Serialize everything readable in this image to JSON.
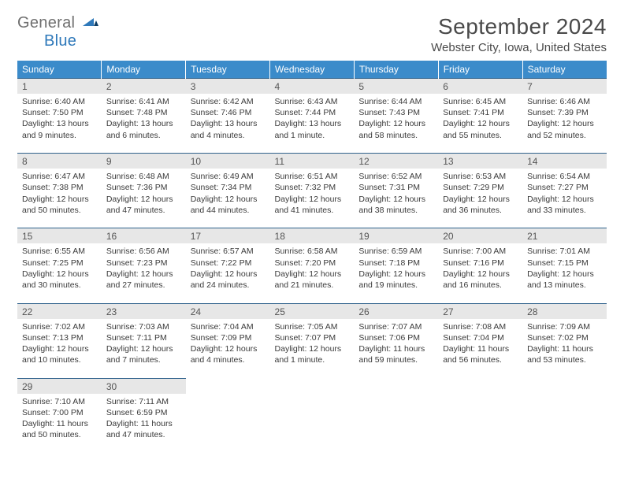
{
  "logo": {
    "line1": "General",
    "line2": "Blue"
  },
  "title": "September 2024",
  "location": "Webster City, Iowa, United States",
  "dayHeaders": [
    "Sunday",
    "Monday",
    "Tuesday",
    "Wednesday",
    "Thursday",
    "Friday",
    "Saturday"
  ],
  "colors": {
    "header_bg": "#3b8bca",
    "header_text": "#ffffff",
    "daynum_bg": "#e7e7e7",
    "rule": "#2f628c",
    "logo_gray": "#6f6f6f",
    "logo_blue": "#2f79ba"
  },
  "weeks": [
    [
      {
        "n": "1",
        "sr": "Sunrise: 6:40 AM",
        "ss": "Sunset: 7:50 PM",
        "dl": "Daylight: 13 hours and 9 minutes."
      },
      {
        "n": "2",
        "sr": "Sunrise: 6:41 AM",
        "ss": "Sunset: 7:48 PM",
        "dl": "Daylight: 13 hours and 6 minutes."
      },
      {
        "n": "3",
        "sr": "Sunrise: 6:42 AM",
        "ss": "Sunset: 7:46 PM",
        "dl": "Daylight: 13 hours and 4 minutes."
      },
      {
        "n": "4",
        "sr": "Sunrise: 6:43 AM",
        "ss": "Sunset: 7:44 PM",
        "dl": "Daylight: 13 hours and 1 minute."
      },
      {
        "n": "5",
        "sr": "Sunrise: 6:44 AM",
        "ss": "Sunset: 7:43 PM",
        "dl": "Daylight: 12 hours and 58 minutes."
      },
      {
        "n": "6",
        "sr": "Sunrise: 6:45 AM",
        "ss": "Sunset: 7:41 PM",
        "dl": "Daylight: 12 hours and 55 minutes."
      },
      {
        "n": "7",
        "sr": "Sunrise: 6:46 AM",
        "ss": "Sunset: 7:39 PM",
        "dl": "Daylight: 12 hours and 52 minutes."
      }
    ],
    [
      {
        "n": "8",
        "sr": "Sunrise: 6:47 AM",
        "ss": "Sunset: 7:38 PM",
        "dl": "Daylight: 12 hours and 50 minutes."
      },
      {
        "n": "9",
        "sr": "Sunrise: 6:48 AM",
        "ss": "Sunset: 7:36 PM",
        "dl": "Daylight: 12 hours and 47 minutes."
      },
      {
        "n": "10",
        "sr": "Sunrise: 6:49 AM",
        "ss": "Sunset: 7:34 PM",
        "dl": "Daylight: 12 hours and 44 minutes."
      },
      {
        "n": "11",
        "sr": "Sunrise: 6:51 AM",
        "ss": "Sunset: 7:32 PM",
        "dl": "Daylight: 12 hours and 41 minutes."
      },
      {
        "n": "12",
        "sr": "Sunrise: 6:52 AM",
        "ss": "Sunset: 7:31 PM",
        "dl": "Daylight: 12 hours and 38 minutes."
      },
      {
        "n": "13",
        "sr": "Sunrise: 6:53 AM",
        "ss": "Sunset: 7:29 PM",
        "dl": "Daylight: 12 hours and 36 minutes."
      },
      {
        "n": "14",
        "sr": "Sunrise: 6:54 AM",
        "ss": "Sunset: 7:27 PM",
        "dl": "Daylight: 12 hours and 33 minutes."
      }
    ],
    [
      {
        "n": "15",
        "sr": "Sunrise: 6:55 AM",
        "ss": "Sunset: 7:25 PM",
        "dl": "Daylight: 12 hours and 30 minutes."
      },
      {
        "n": "16",
        "sr": "Sunrise: 6:56 AM",
        "ss": "Sunset: 7:23 PM",
        "dl": "Daylight: 12 hours and 27 minutes."
      },
      {
        "n": "17",
        "sr": "Sunrise: 6:57 AM",
        "ss": "Sunset: 7:22 PM",
        "dl": "Daylight: 12 hours and 24 minutes."
      },
      {
        "n": "18",
        "sr": "Sunrise: 6:58 AM",
        "ss": "Sunset: 7:20 PM",
        "dl": "Daylight: 12 hours and 21 minutes."
      },
      {
        "n": "19",
        "sr": "Sunrise: 6:59 AM",
        "ss": "Sunset: 7:18 PM",
        "dl": "Daylight: 12 hours and 19 minutes."
      },
      {
        "n": "20",
        "sr": "Sunrise: 7:00 AM",
        "ss": "Sunset: 7:16 PM",
        "dl": "Daylight: 12 hours and 16 minutes."
      },
      {
        "n": "21",
        "sr": "Sunrise: 7:01 AM",
        "ss": "Sunset: 7:15 PM",
        "dl": "Daylight: 12 hours and 13 minutes."
      }
    ],
    [
      {
        "n": "22",
        "sr": "Sunrise: 7:02 AM",
        "ss": "Sunset: 7:13 PM",
        "dl": "Daylight: 12 hours and 10 minutes."
      },
      {
        "n": "23",
        "sr": "Sunrise: 7:03 AM",
        "ss": "Sunset: 7:11 PM",
        "dl": "Daylight: 12 hours and 7 minutes."
      },
      {
        "n": "24",
        "sr": "Sunrise: 7:04 AM",
        "ss": "Sunset: 7:09 PM",
        "dl": "Daylight: 12 hours and 4 minutes."
      },
      {
        "n": "25",
        "sr": "Sunrise: 7:05 AM",
        "ss": "Sunset: 7:07 PM",
        "dl": "Daylight: 12 hours and 1 minute."
      },
      {
        "n": "26",
        "sr": "Sunrise: 7:07 AM",
        "ss": "Sunset: 7:06 PM",
        "dl": "Daylight: 11 hours and 59 minutes."
      },
      {
        "n": "27",
        "sr": "Sunrise: 7:08 AM",
        "ss": "Sunset: 7:04 PM",
        "dl": "Daylight: 11 hours and 56 minutes."
      },
      {
        "n": "28",
        "sr": "Sunrise: 7:09 AM",
        "ss": "Sunset: 7:02 PM",
        "dl": "Daylight: 11 hours and 53 minutes."
      }
    ],
    [
      {
        "n": "29",
        "sr": "Sunrise: 7:10 AM",
        "ss": "Sunset: 7:00 PM",
        "dl": "Daylight: 11 hours and 50 minutes."
      },
      {
        "n": "30",
        "sr": "Sunrise: 7:11 AM",
        "ss": "Sunset: 6:59 PM",
        "dl": "Daylight: 11 hours and 47 minutes."
      },
      null,
      null,
      null,
      null,
      null
    ]
  ]
}
